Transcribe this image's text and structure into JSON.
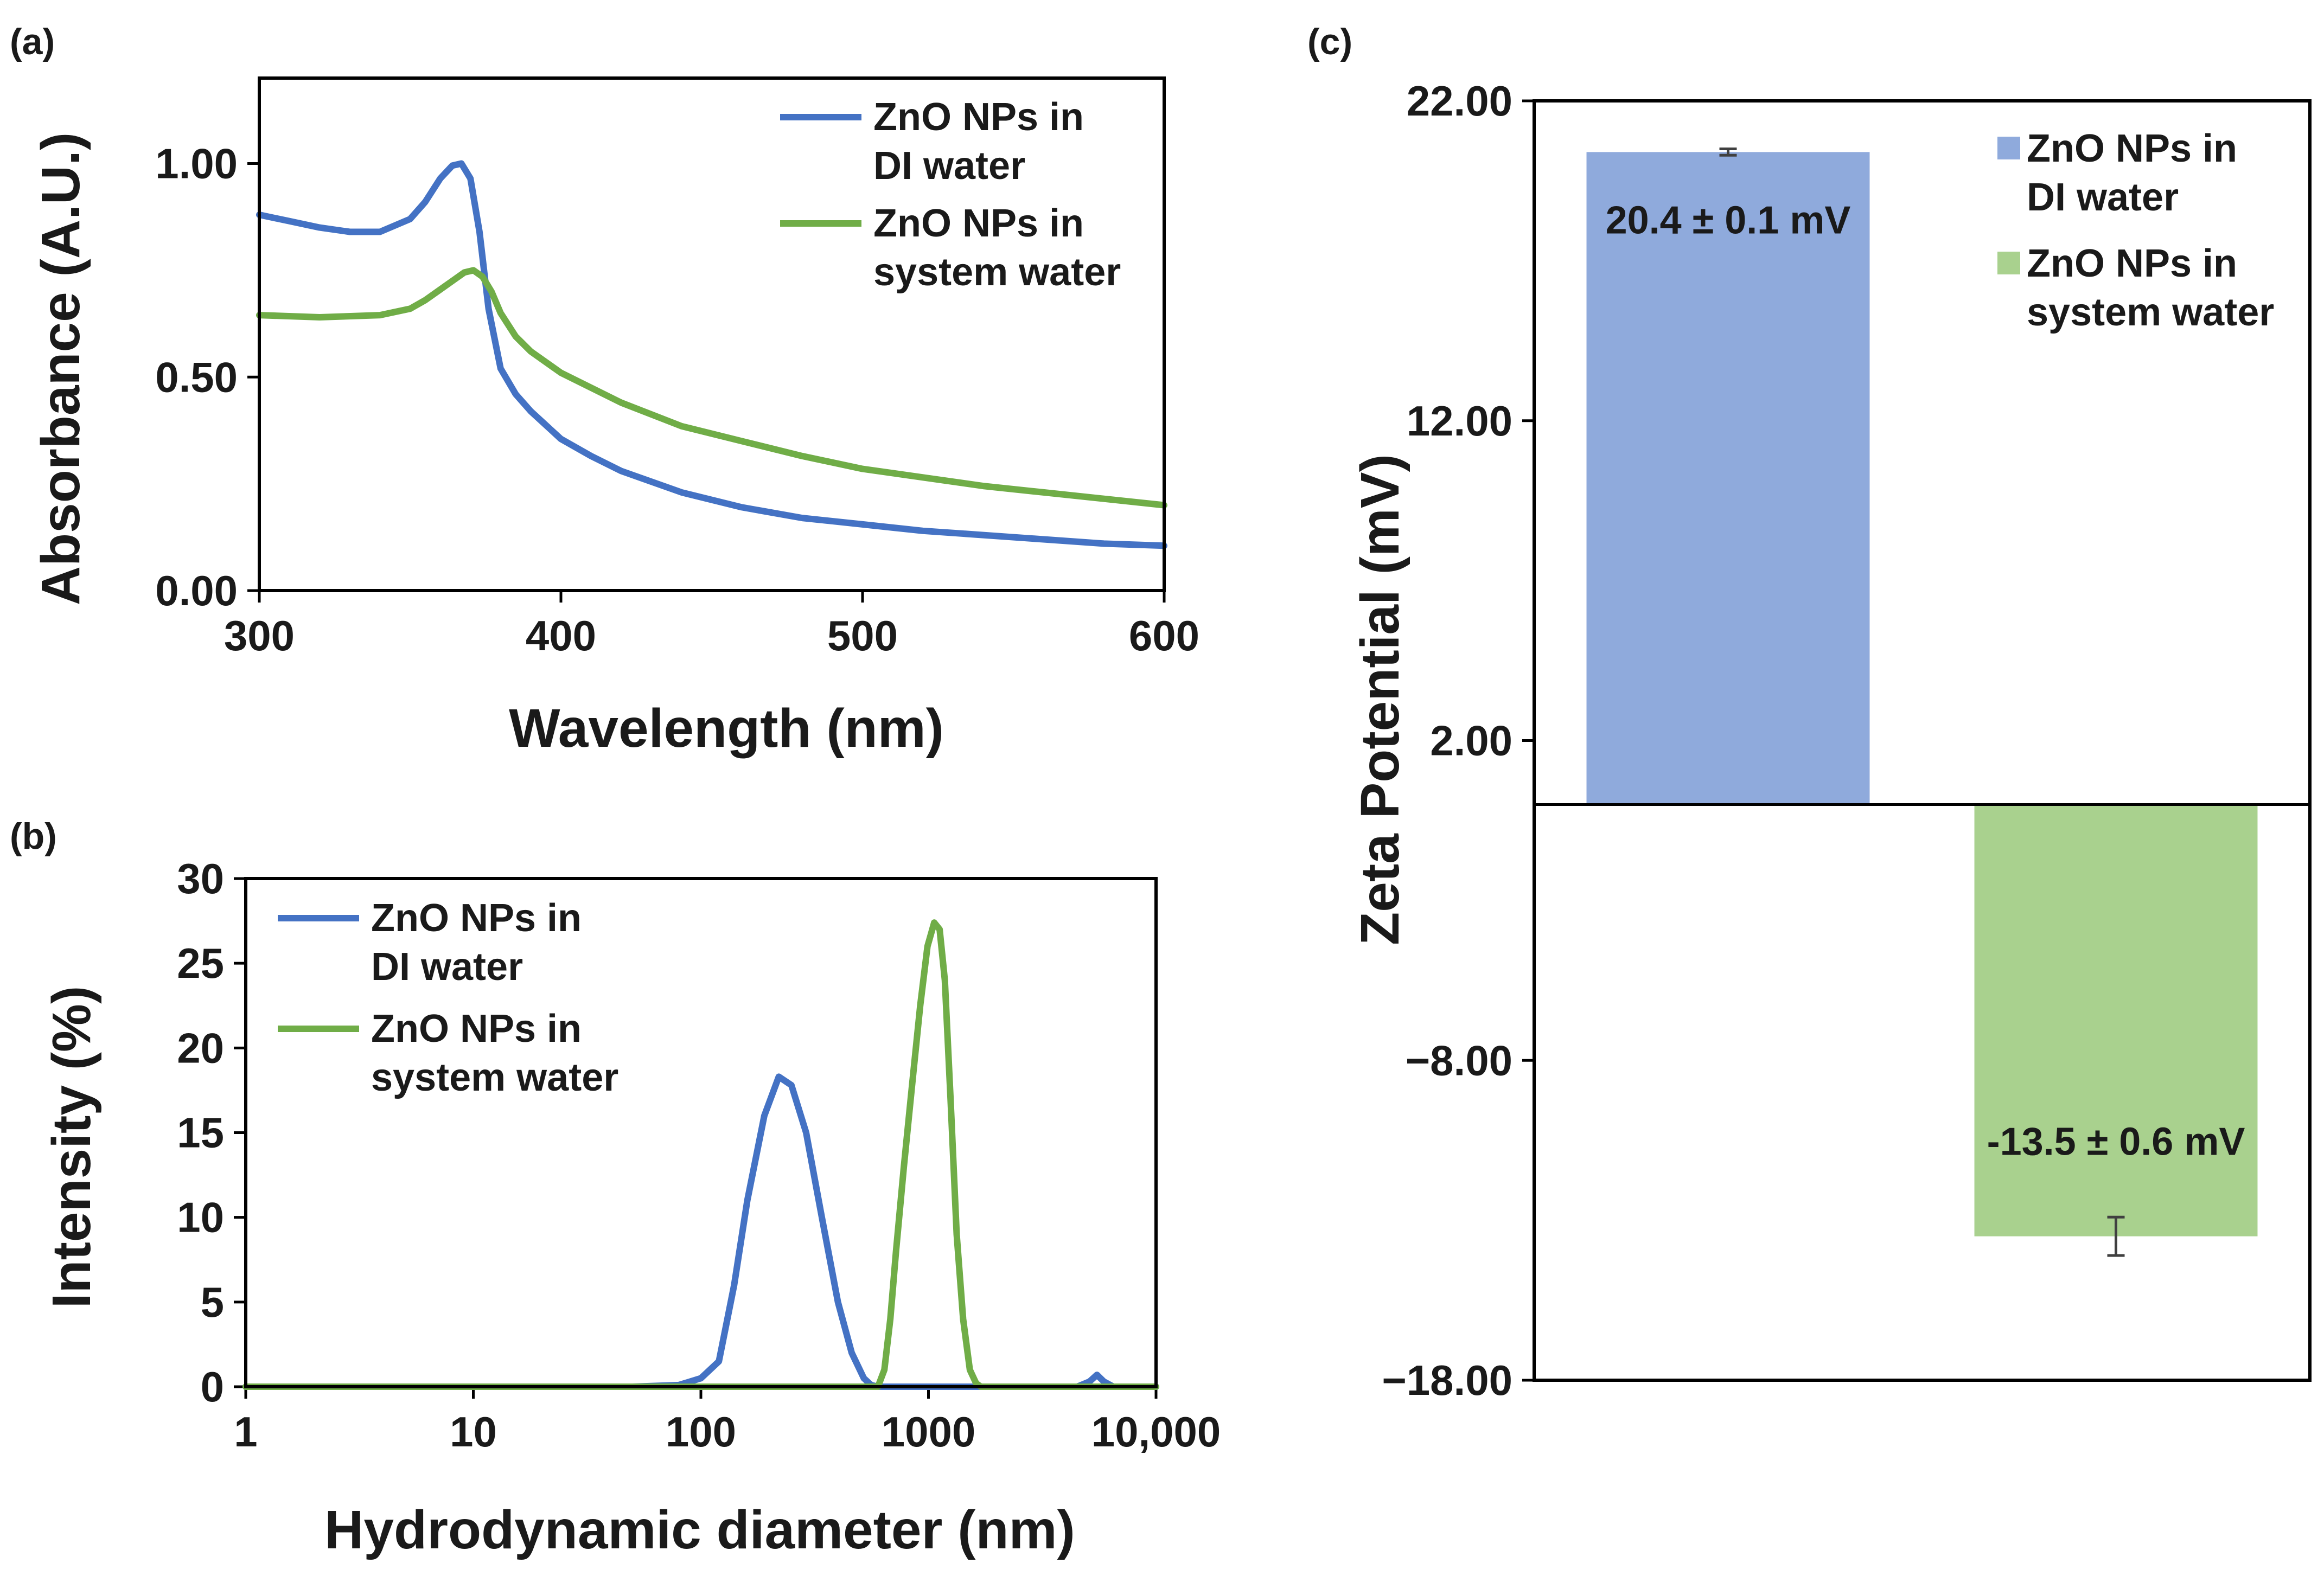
{
  "colors": {
    "di_line": "#4472C4",
    "sys_line": "#70AD47",
    "di_bar": "#8FAADC",
    "sys_bar": "#A9D18E",
    "error_bar": "#404040"
  },
  "chart_data": [
    {
      "panel": "(a)",
      "type": "line",
      "title": "",
      "xlabel": "Wavelength (nm)",
      "ylabel": "Absorbance (A.U.)",
      "xlim": [
        300,
        600
      ],
      "ylim": [
        0,
        1.2
      ],
      "xticks": [
        300,
        400,
        500,
        600
      ],
      "xtick_labels": [
        "300",
        "400",
        "500",
        "600"
      ],
      "yticks": [
        0,
        0.5,
        1.0
      ],
      "ytick_labels": [
        "0.00",
        "0.50",
        "1.00"
      ],
      "legend_position": "top-right",
      "series": [
        {
          "name": "ZnO NPs in DI water",
          "legend_lines": [
            "ZnO NPs in",
            "DI water"
          ],
          "color": "#4472C4",
          "x": [
            300,
            310,
            320,
            330,
            340,
            350,
            355,
            360,
            364,
            367,
            370,
            373,
            376,
            380,
            385,
            390,
            400,
            410,
            420,
            440,
            460,
            480,
            500,
            520,
            540,
            560,
            580,
            600
          ],
          "y": [
            0.88,
            0.865,
            0.85,
            0.84,
            0.84,
            0.87,
            0.91,
            0.965,
            0.995,
            1.0,
            0.965,
            0.84,
            0.66,
            0.52,
            0.46,
            0.42,
            0.355,
            0.315,
            0.28,
            0.23,
            0.195,
            0.17,
            0.155,
            0.14,
            0.13,
            0.12,
            0.11,
            0.105
          ]
        },
        {
          "name": "ZnO NPs in system water",
          "legend_lines": [
            "ZnO NPs in",
            "system water"
          ],
          "color": "#70AD47",
          "x": [
            300,
            320,
            340,
            350,
            355,
            360,
            365,
            368,
            371,
            374,
            377,
            380,
            385,
            390,
            400,
            420,
            440,
            460,
            480,
            500,
            520,
            540,
            560,
            580,
            600
          ],
          "y": [
            0.645,
            0.64,
            0.645,
            0.66,
            0.68,
            0.705,
            0.73,
            0.745,
            0.75,
            0.735,
            0.7,
            0.65,
            0.595,
            0.56,
            0.51,
            0.44,
            0.385,
            0.35,
            0.315,
            0.285,
            0.265,
            0.245,
            0.23,
            0.215,
            0.2
          ]
        }
      ]
    },
    {
      "panel": "(b)",
      "type": "line",
      "title": "",
      "xlabel": "Hydrodynamic diameter (nm)",
      "ylabel": "Intensity (%)",
      "xscale": "log",
      "xlim": [
        1,
        10000
      ],
      "ylim": [
        0,
        30
      ],
      "xticks": [
        1,
        10,
        100,
        1000,
        10000
      ],
      "xtick_labels": [
        "1",
        "10",
        "100",
        "1000",
        "10,000"
      ],
      "yticks": [
        0,
        5,
        10,
        15,
        20,
        25,
        30
      ],
      "ytick_labels": [
        "0",
        "5",
        "10",
        "15",
        "20",
        "25",
        "30"
      ],
      "legend_position": "top-left",
      "series": [
        {
          "name": "ZnO NPs in DI water",
          "legend_lines": [
            "ZnO NPs in",
            "DI water"
          ],
          "color": "#4472C4",
          "x": [
            1,
            50,
            80,
            100,
            120,
            140,
            160,
            190,
            220,
            250,
            290,
            340,
            400,
            460,
            520,
            560,
            600,
            1000,
            4500,
            5100,
            5500,
            5900,
            6500,
            10000
          ],
          "y": [
            0,
            0,
            0.1,
            0.5,
            1.5,
            6,
            11,
            16,
            18.3,
            17.8,
            15,
            10,
            5,
            2,
            0.5,
            0.1,
            0,
            0,
            0,
            0.3,
            0.7,
            0.3,
            0,
            0
          ]
        },
        {
          "name": "ZnO NPs in system water",
          "legend_lines": [
            "ZnO NPs in",
            "system water"
          ],
          "color": "#70AD47",
          "x": [
            1,
            600,
            640,
            680,
            720,
            780,
            850,
            920,
            990,
            1060,
            1120,
            1180,
            1250,
            1330,
            1420,
            1520,
            1620,
            1700,
            10000
          ],
          "y": [
            0,
            0,
            1,
            4,
            8,
            13,
            18,
            22.5,
            26,
            27.4,
            27,
            24,
            17,
            9,
            4,
            1,
            0.2,
            0,
            0
          ]
        }
      ]
    },
    {
      "panel": "(c)",
      "type": "bar",
      "title": "",
      "xlabel": "",
      "ylabel": "Zeta Potential (mV)",
      "ylim": [
        -18,
        22
      ],
      "yticks": [
        -18,
        -8,
        2,
        12,
        22
      ],
      "ytick_labels": [
        "−18.00",
        "−8.00",
        "2.00",
        "12.00",
        "22.00"
      ],
      "legend_position": "top-right",
      "categories": [
        "ZnO NPs in DI water",
        "ZnO NPs in system water"
      ],
      "legend": [
        {
          "lines": [
            "ZnO NPs in",
            "DI water"
          ],
          "color": "#8FAADC"
        },
        {
          "lines": [
            "ZnO NPs in",
            "system water"
          ],
          "color": "#A9D18E"
        }
      ],
      "values": [
        20.4,
        -13.5
      ],
      "errors": [
        0.1,
        0.6
      ],
      "data_labels": [
        "20.4 ± 0.1 mV",
        "-13.5 ± 0.6 mV"
      ],
      "colors": [
        "#8FAADC",
        "#A9D18E"
      ]
    }
  ]
}
